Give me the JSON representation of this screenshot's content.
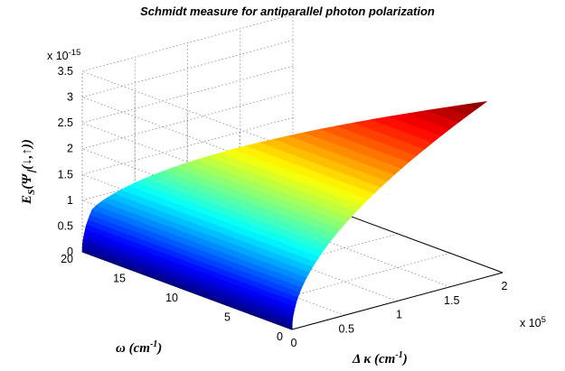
{
  "chart_data": {
    "type": "surface",
    "title": "Schmidt measure for antiparallel photon polarization",
    "x_axis": {
      "label_symbol": "Δ κ",
      "label_unit": "(cm",
      "label_exp": "-1",
      "label_close": ")",
      "range": [
        0,
        2
      ],
      "ticks": [
        0,
        0.5,
        1,
        1.5,
        2
      ],
      "tick_labels": [
        "0",
        "0.5",
        "1",
        "1.5",
        "2"
      ],
      "scale_base": "x 10",
      "scale_exp": "5"
    },
    "y_axis": {
      "label_symbol": "ω",
      "label_unit": "(cm",
      "label_exp": "-1",
      "label_close": ")",
      "range": [
        0,
        20
      ],
      "ticks": [
        0,
        5,
        10,
        15,
        20
      ],
      "tick_labels": [
        "0",
        "5",
        "10",
        "15",
        "20"
      ]
    },
    "z_axis": {
      "label_main": "E",
      "label_sub": "S",
      "label_arg": "(Ψ",
      "label_arg_sub": "∣",
      "label_rest": "(↓,↑))",
      "range": [
        0,
        3.5
      ],
      "ticks": [
        0,
        0.5,
        1,
        1.5,
        2,
        2.5,
        3,
        3.5
      ],
      "tick_labels": [
        "0",
        "0.5",
        "1",
        "1.5",
        "2",
        "2.5",
        "3",
        "3.5"
      ],
      "scale_base": "x 10",
      "scale_exp": "-15"
    },
    "surface": {
      "description_units": "z in units of 1e-15, x in units of 1e5 cm^-1, y in cm^-1",
      "z_max": 3.4,
      "domain_x_max_at_y0": 1.85,
      "domain_x_max_at_y20": 0.1,
      "shape": "z rises with sqrt of x, domain boundary x from 1.85 (y=0) to 0.1 (y=20)"
    },
    "colormap": "jet",
    "grid": true
  }
}
